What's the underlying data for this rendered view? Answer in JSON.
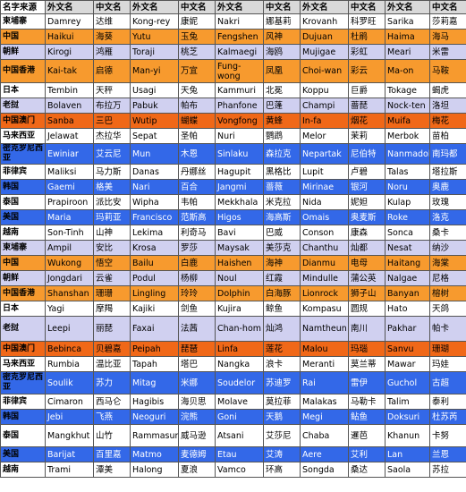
{
  "headers": [
    "名字来源",
    "外文名",
    "中文名",
    "外文名",
    "中文名",
    "外文名",
    "中文名",
    "外文名",
    "中文名",
    "外文名",
    "中文名"
  ],
  "rows": [
    {
      "country": "柬埔寨",
      "style": "w",
      "names": [
        [
          "Damrey",
          "达维"
        ],
        [
          "Kong-rey",
          "康妮"
        ],
        [
          "Nakri",
          "娜基莉"
        ],
        [
          "Krovanh",
          "科罗旺"
        ],
        [
          "Sarika",
          "莎莉嘉"
        ]
      ]
    },
    {
      "country": "中国",
      "style": "o",
      "names": [
        [
          "Haikui",
          "海葵"
        ],
        [
          "Yutu",
          "玉兔"
        ],
        [
          "Fengshen",
          "风神"
        ],
        [
          "Dujuan",
          "杜鹃"
        ],
        [
          "Haima",
          "海马"
        ]
      ]
    },
    {
      "country": "朝鲜",
      "style": "l",
      "names": [
        [
          "Kirogi",
          "鸿雁"
        ],
        [
          "Toraji",
          "桃芝"
        ],
        [
          "Kalmaegi",
          "海鸥"
        ],
        [
          "Mujigae",
          "彩虹"
        ],
        [
          "Meari",
          "米雷"
        ]
      ]
    },
    {
      "country": "中国香港",
      "style": "o",
      "names": [
        [
          "Kai-tak",
          "启德"
        ],
        [
          "Man-yi",
          "万宜"
        ],
        [
          "Fung-wong",
          "凤凰"
        ],
        [
          "Choi-wan",
          "彩云"
        ],
        [
          "Ma-on",
          "马鞍"
        ]
      ]
    },
    {
      "country": "日本",
      "style": "w",
      "names": [
        [
          "Tembin",
          "天秤"
        ],
        [
          "Usagi",
          "天兔"
        ],
        [
          "Kammuri",
          "北冕"
        ],
        [
          "Koppu",
          "巨爵"
        ],
        [
          "Tokage",
          "蝎虎"
        ]
      ]
    },
    {
      "country": "老挝",
      "style": "l",
      "names": [
        [
          "Bolaven",
          "布拉万"
        ],
        [
          "Pabuk",
          "帕布"
        ],
        [
          "Phanfone",
          "巴蓬"
        ],
        [
          "Champi",
          "蔷琵"
        ],
        [
          "Nock-ten",
          "洛坦"
        ]
      ]
    },
    {
      "country": "中国澳门",
      "style": "r",
      "names": [
        [
          "Sanba",
          "三巴"
        ],
        [
          "Wutip",
          "蝴蝶"
        ],
        [
          "Vongfong",
          "黄蜂"
        ],
        [
          "In-fa",
          "烟花"
        ],
        [
          "Muifa",
          "梅花"
        ]
      ]
    },
    {
      "country": "马来西亚",
      "style": "w",
      "names": [
        [
          "Jelawat",
          "杰拉华"
        ],
        [
          "Sepat",
          "圣帕"
        ],
        [
          "Nuri",
          "鹦鹉"
        ],
        [
          "Melor",
          "茉莉"
        ],
        [
          "Merbok",
          "苗柏"
        ]
      ]
    },
    {
      "country": "密克罗尼西亚",
      "style": "b",
      "names": [
        [
          "Ewiniar",
          "艾云尼"
        ],
        [
          "Mun",
          "木恩"
        ],
        [
          "Sinlaku",
          "森拉克"
        ],
        [
          "Nepartak",
          "尼伯特"
        ],
        [
          "Nanmadol",
          "南玛都"
        ]
      ]
    },
    {
      "country": "菲律宾",
      "style": "w",
      "names": [
        [
          "Maliksi",
          "马力斯"
        ],
        [
          "Danas",
          "丹娜丝"
        ],
        [
          "Hagupit",
          "黑格比"
        ],
        [
          "Lupit",
          "卢碧"
        ],
        [
          "Talas",
          "塔拉斯"
        ]
      ]
    },
    {
      "country": "韩国",
      "style": "b",
      "names": [
        [
          "Gaemi",
          "格美"
        ],
        [
          "Nari",
          "百合"
        ],
        [
          "Jangmi",
          "蔷薇"
        ],
        [
          "Mirinae",
          "银河"
        ],
        [
          "Noru",
          "奥鹿"
        ]
      ]
    },
    {
      "country": "泰国",
      "style": "w",
      "names": [
        [
          "Prapiroon",
          "派比安"
        ],
        [
          "Wipha",
          "韦帕"
        ],
        [
          "Mekkhala",
          "米克拉"
        ],
        [
          "Nida",
          "妮妲"
        ],
        [
          "Kulap",
          "玫瑰"
        ]
      ]
    },
    {
      "country": "美国",
      "style": "b",
      "names": [
        [
          "Maria",
          "玛莉亚"
        ],
        [
          "Francisco",
          "范斯高"
        ],
        [
          "Higos",
          "海高斯"
        ],
        [
          "Omais",
          "奥麦斯"
        ],
        [
          "Roke",
          "洛克"
        ]
      ]
    },
    {
      "country": "越南",
      "style": "w",
      "names": [
        [
          "Son-Tinh",
          "山神"
        ],
        [
          "Lekima",
          "利奇马"
        ],
        [
          "Bavi",
          "巴威"
        ],
        [
          "Conson",
          "康森"
        ],
        [
          "Sonca",
          "桑卡"
        ]
      ]
    },
    {
      "country": "柬埔寨",
      "style": "l",
      "names": [
        [
          "Ampil",
          "安比"
        ],
        [
          "Krosa",
          "罗莎"
        ],
        [
          "Maysak",
          "美莎克"
        ],
        [
          "Chanthu",
          "灿都"
        ],
        [
          "Nesat",
          "纳沙"
        ]
      ]
    },
    {
      "country": "中国",
      "style": "o",
      "names": [
        [
          "Wukong",
          "悟空"
        ],
        [
          "Bailu",
          "白鹿"
        ],
        [
          "Haishen",
          "海神"
        ],
        [
          "Dianmu",
          "电母"
        ],
        [
          "Haitang",
          "海棠"
        ]
      ]
    },
    {
      "country": "朝鲜",
      "style": "l",
      "names": [
        [
          "Jongdari",
          "云雀"
        ],
        [
          "Podul",
          "杨柳"
        ],
        [
          "Noul",
          "红霞"
        ],
        [
          "Mindulle",
          "蒲公英"
        ],
        [
          "Nalgae",
          "尼格"
        ]
      ]
    },
    {
      "country": "中国香港",
      "style": "o",
      "names": [
        [
          "Shanshan",
          "珊珊"
        ],
        [
          "Lingling",
          "玲玲"
        ],
        [
          "Dolphin",
          "白海豚"
        ],
        [
          "Lionrock",
          "狮子山"
        ],
        [
          "Banyan",
          "榕树"
        ]
      ]
    },
    {
      "country": "日本",
      "style": "w",
      "names": [
        [
          "Yagi",
          "摩羯"
        ],
        [
          "Kajiki",
          "剑鱼"
        ],
        [
          "Kujira",
          "鲸鱼"
        ],
        [
          "Kompasu",
          "圆规"
        ],
        [
          "Hato",
          "天鸽"
        ]
      ]
    },
    {
      "country": "老挝",
      "style": "l",
      "names": [
        [
          "Leepi",
          "丽琵"
        ],
        [
          "Faxai",
          "法茜"
        ],
        [
          "Chan-hom",
          "灿鸿"
        ],
        [
          "Namtheun",
          "南川"
        ],
        [
          "Pakhar",
          "帕卡"
        ]
      ]
    },
    {
      "country": "中国澳门",
      "style": "r",
      "names": [
        [
          "Bebinca",
          "贝碧嘉"
        ],
        [
          "Peipah",
          "琵琶"
        ],
        [
          "Linfa",
          "莲花"
        ],
        [
          "Malou",
          "玛瑙"
        ],
        [
          "Sanvu",
          "珊瑚"
        ]
      ]
    },
    {
      "country": "马来西亚",
      "style": "w",
      "names": [
        [
          "Rumbia",
          "温比亚"
        ],
        [
          "Tapah",
          "塔巴"
        ],
        [
          "Nangka",
          "浪卡"
        ],
        [
          "Meranti",
          "莫兰蒂"
        ],
        [
          "Mawar",
          "玛娃"
        ]
      ]
    },
    {
      "country": "密克罗尼西亚",
      "style": "b",
      "names": [
        [
          "Soulik",
          "苏力"
        ],
        [
          "Mitag",
          "米娜"
        ],
        [
          "Soudelor",
          "苏迪罗"
        ],
        [
          "Rai",
          "雷伊"
        ],
        [
          "Guchol",
          "古超"
        ]
      ]
    },
    {
      "country": "菲律宾",
      "style": "w",
      "names": [
        [
          "Cimaron",
          "西马仑"
        ],
        [
          "Hagibis",
          "海贝思"
        ],
        [
          "Molave",
          "莫拉菲"
        ],
        [
          "Malakas",
          "马勒卡"
        ],
        [
          "Talim",
          "泰利"
        ]
      ]
    },
    {
      "country": "韩国",
      "style": "b",
      "names": [
        [
          "Jebi",
          "飞燕"
        ],
        [
          "Neoguri",
          "浣熊"
        ],
        [
          "Goni",
          "天鹅"
        ],
        [
          "Megi",
          "鲇鱼"
        ],
        [
          "Doksuri",
          "杜苏芮"
        ]
      ]
    },
    {
      "country": "泰国",
      "style": "w",
      "names": [
        [
          "Mangkhut",
          "山竹"
        ],
        [
          "Rammasun",
          "威马逊"
        ],
        [
          "Atsani",
          "艾莎尼"
        ],
        [
          "Chaba",
          "暹芭"
        ],
        [
          "Khanun",
          "卡努"
        ]
      ]
    },
    {
      "country": "美国",
      "style": "b",
      "names": [
        [
          "Barijat",
          "百里嘉"
        ],
        [
          "Matmo",
          "麦德姆"
        ],
        [
          "Etau",
          "艾涛"
        ],
        [
          "Aere",
          "艾利"
        ],
        [
          "Lan",
          "兰恩"
        ]
      ]
    },
    {
      "country": "越南",
      "style": "w",
      "names": [
        [
          "Trami",
          "潭美"
        ],
        [
          "Halong",
          "夏浪"
        ],
        [
          "Vamco",
          "环高"
        ],
        [
          "Songda",
          "桑达"
        ],
        [
          "Saola",
          "苏拉"
        ]
      ]
    }
  ]
}
